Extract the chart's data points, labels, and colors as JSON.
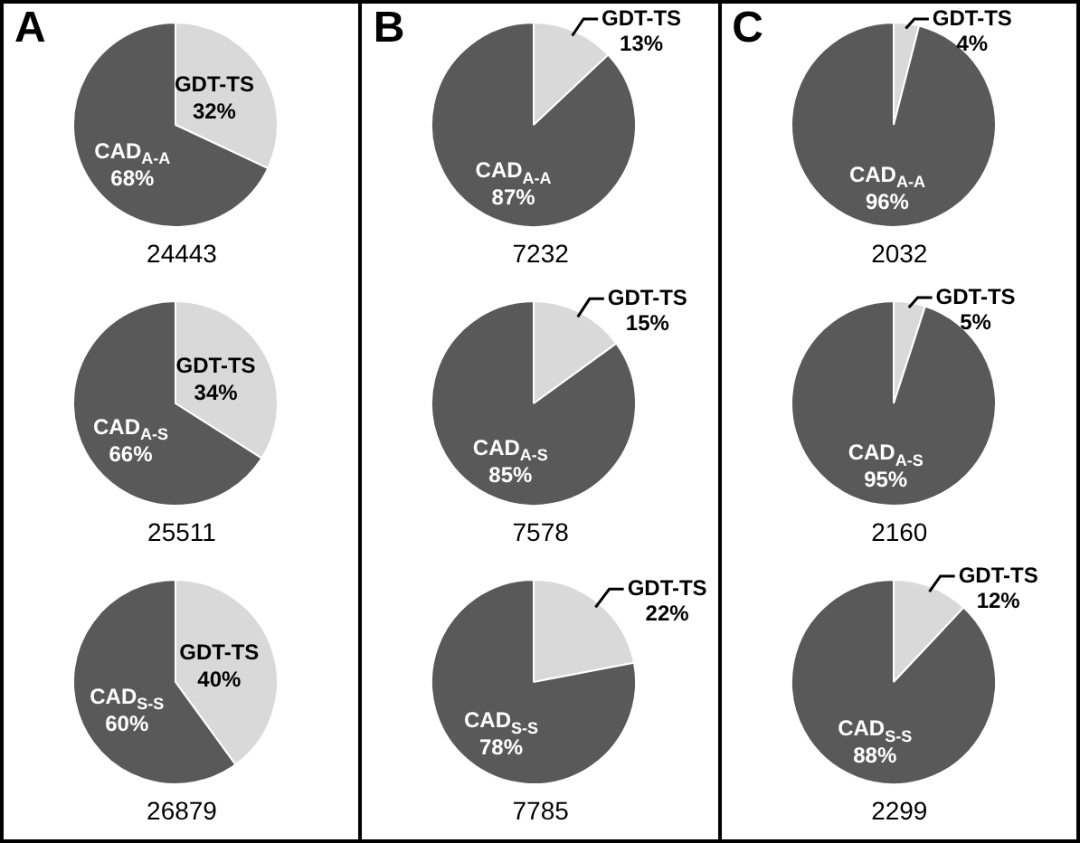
{
  "chart_data": [
    {
      "type": "pie",
      "title": "A",
      "categories": [
        "GDT-TS",
        "CAD$_{A-A}$"
      ],
      "values": [
        32,
        68
      ],
      "colors": [
        "#d9d9d9",
        "#595959"
      ],
      "value_labels": [
        "32%",
        "68%"
      ],
      "annotations": [
        "24443"
      ]
    },
    {
      "type": "pie",
      "categories": [
        "GDT-TS",
        "CAD$_{A-S}$"
      ],
      "values": [
        34,
        66
      ],
      "colors": [
        "#d9d9d9",
        "#595959"
      ],
      "value_labels": [
        "34%",
        "66%"
      ],
      "annotations": [
        "25511"
      ]
    },
    {
      "type": "pie",
      "categories": [
        "GDT-TS",
        "CAD$_{S-S}$"
      ],
      "values": [
        40,
        60
      ],
      "colors": [
        "#d9d9d9",
        "#595959"
      ],
      "value_labels": [
        "40%",
        "60%"
      ],
      "annotations": [
        "26879"
      ]
    },
    {
      "type": "pie",
      "title": "B",
      "categories": [
        "GDT-TS",
        "CAD$_{A-A}$"
      ],
      "values": [
        13,
        87
      ],
      "colors": [
        "#d9d9d9",
        "#595959"
      ],
      "value_labels": [
        "13%",
        "87%"
      ],
      "annotations": [
        "7232"
      ]
    },
    {
      "type": "pie",
      "categories": [
        "GDT-TS",
        "CAD$_{A-S}$"
      ],
      "values": [
        15,
        85
      ],
      "colors": [
        "#d9d9d9",
        "#595959"
      ],
      "value_labels": [
        "15%",
        "85%"
      ],
      "annotations": [
        "7578"
      ]
    },
    {
      "type": "pie",
      "categories": [
        "GDT-TS",
        "CAD$_{S-S}$"
      ],
      "values": [
        22,
        78
      ],
      "colors": [
        "#d9d9d9",
        "#595959"
      ],
      "value_labels": [
        "22%",
        "78%"
      ],
      "annotations": [
        "7785"
      ]
    },
    {
      "type": "pie",
      "title": "C",
      "categories": [
        "GDT-TS",
        "CAD$_{A-A}$"
      ],
      "values": [
        4,
        96
      ],
      "colors": [
        "#d9d9d9",
        "#595959"
      ],
      "value_labels": [
        "4%",
        "96%"
      ],
      "annotations": [
        "2032"
      ]
    },
    {
      "type": "pie",
      "categories": [
        "GDT-TS",
        "CAD$_{A-S}$"
      ],
      "values": [
        5,
        95
      ],
      "colors": [
        "#d9d9d9",
        "#595959"
      ],
      "value_labels": [
        "5%",
        "95%"
      ],
      "annotations": [
        "2160"
      ]
    },
    {
      "type": "pie",
      "categories": [
        "GDT-TS",
        "CAD$_{S-S}$"
      ],
      "values": [
        12,
        88
      ],
      "colors": [
        "#d9d9d9",
        "#595959"
      ],
      "value_labels": [
        "12%",
        "88%"
      ],
      "annotations": [
        "2299"
      ]
    }
  ]
}
